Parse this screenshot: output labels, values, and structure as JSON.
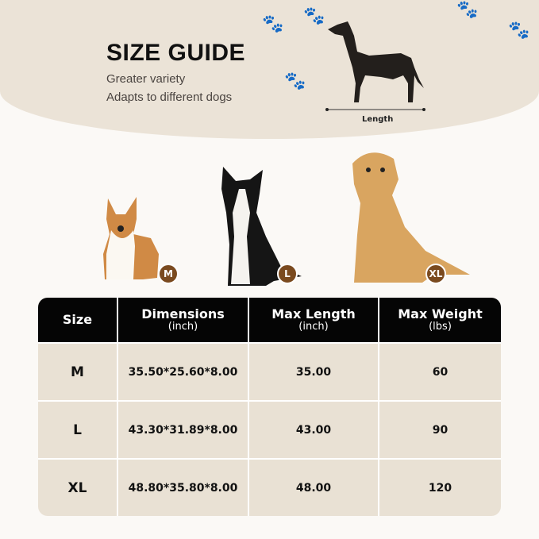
{
  "header": {
    "title": "SIZE GUIDE",
    "subtitle_lines": [
      "Greater variety",
      "Adapts to different dogs"
    ],
    "length_label": "Length"
  },
  "dogs": [
    {
      "badge": "M"
    },
    {
      "badge": "L"
    },
    {
      "badge": "XL"
    }
  ],
  "colors": {
    "background_top": "#ebe3d7",
    "badge": "#7a4a1f",
    "table_header": "#050505",
    "table_body": "#e9e1d4"
  },
  "table": {
    "headers": [
      {
        "label": "Size",
        "unit": ""
      },
      {
        "label": "Dimensions",
        "unit": "(inch)"
      },
      {
        "label": "Max Length",
        "unit": "(inch)"
      },
      {
        "label": "Max Weight",
        "unit": "(lbs)"
      }
    ],
    "rows": [
      [
        "M",
        "35.50*25.60*8.00",
        "35.00",
        "60"
      ],
      [
        "L",
        "43.30*31.89*8.00",
        "43.00",
        "90"
      ],
      [
        "XL",
        "48.80*35.80*8.00",
        "48.00",
        "120"
      ]
    ]
  }
}
